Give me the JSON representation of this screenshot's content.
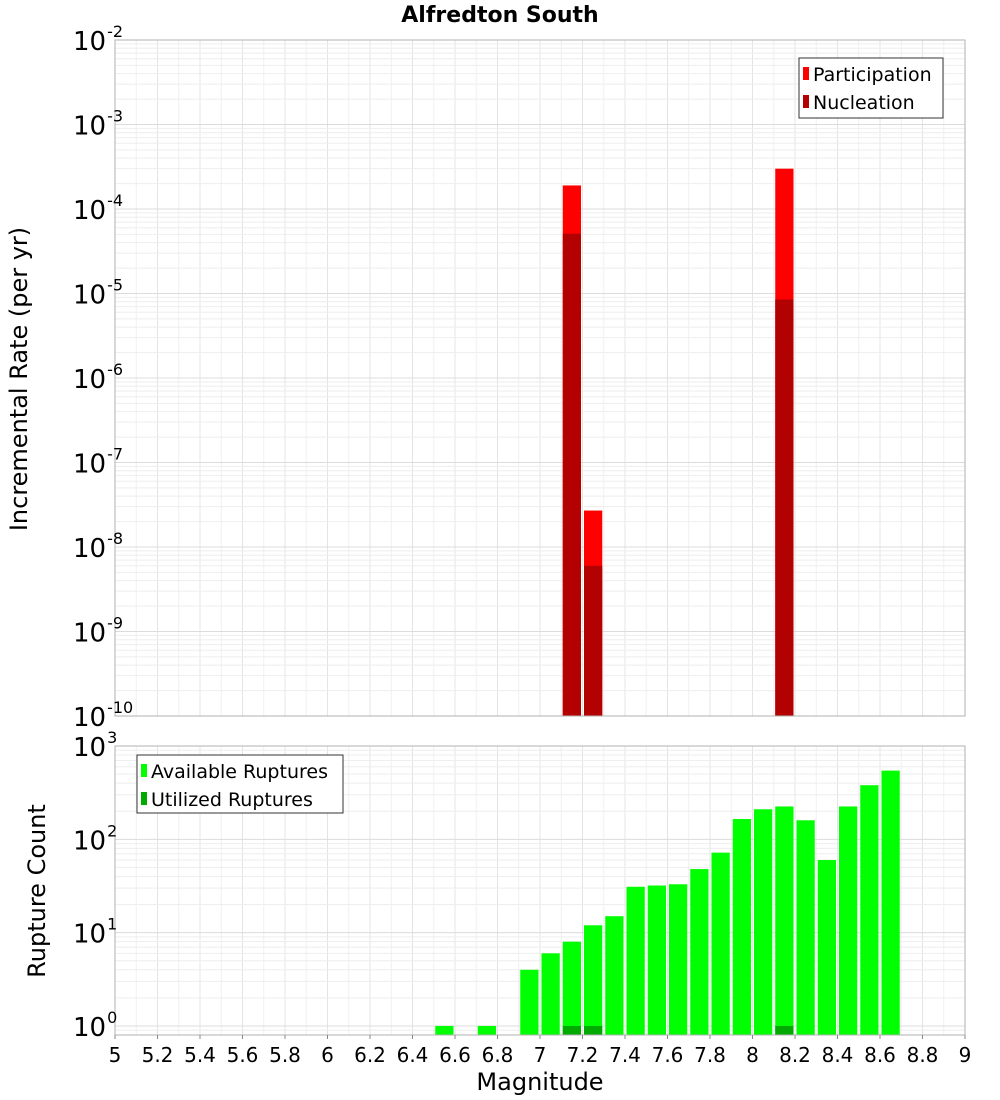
{
  "chart_data": [
    {
      "type": "bar",
      "title": "Alfredton South",
      "xlabel": "",
      "ylabel": "Incremental Rate (per yr)",
      "yscale": "log",
      "ylim": [
        1e-10,
        0.01
      ],
      "xlim": [
        5,
        9
      ],
      "bin_width": 0.1,
      "grid": true,
      "legend_position": "top-right",
      "y_tick_labels": [
        {
          "base": "10",
          "exp": "-10"
        },
        {
          "base": "10",
          "exp": "-9"
        },
        {
          "base": "10",
          "exp": "-8"
        },
        {
          "base": "10",
          "exp": "-7"
        },
        {
          "base": "10",
          "exp": "-6"
        },
        {
          "base": "10",
          "exp": "-5"
        },
        {
          "base": "10",
          "exp": "-4"
        },
        {
          "base": "10",
          "exp": "-3"
        },
        {
          "base": "10",
          "exp": "-2"
        }
      ],
      "series": [
        {
          "name": "Participation",
          "color": "#ff0000",
          "points": [
            {
              "x": 7.15,
              "y": 0.00019
            },
            {
              "x": 7.25,
              "y": 2.7e-08
            },
            {
              "x": 8.15,
              "y": 0.0003
            }
          ]
        },
        {
          "name": "Nucleation",
          "color": "#b30000",
          "points": [
            {
              "x": 7.15,
              "y": 5.1e-05
            },
            {
              "x": 7.25,
              "y": 6e-09
            },
            {
              "x": 8.15,
              "y": 8.5e-06
            }
          ]
        }
      ]
    },
    {
      "type": "bar",
      "title": "",
      "xlabel": "Magnitude",
      "ylabel": "Rupture Count",
      "yscale": "log",
      "ylim": [
        0.8,
        1000
      ],
      "xlim": [
        5,
        9
      ],
      "bin_width": 0.1,
      "grid": true,
      "legend_position": "top-left",
      "x_tick_labels": [
        "5",
        "5.2",
        "5.4",
        "5.6",
        "5.8",
        "6",
        "6.2",
        "6.4",
        "6.6",
        "6.8",
        "7",
        "7.2",
        "7.4",
        "7.6",
        "7.8",
        "8",
        "8.2",
        "8.4",
        "8.6",
        "8.8",
        "9"
      ],
      "y_tick_labels": [
        {
          "base": "10",
          "exp": "0"
        },
        {
          "base": "10",
          "exp": "1"
        },
        {
          "base": "10",
          "exp": "2"
        },
        {
          "base": "10",
          "exp": "3"
        }
      ],
      "series": [
        {
          "name": "Available Ruptures",
          "color": "#00ff00",
          "points": [
            {
              "x": 6.55,
              "y": 1
            },
            {
              "x": 6.75,
              "y": 1
            },
            {
              "x": 6.95,
              "y": 4
            },
            {
              "x": 7.05,
              "y": 6
            },
            {
              "x": 7.15,
              "y": 8
            },
            {
              "x": 7.25,
              "y": 12
            },
            {
              "x": 7.35,
              "y": 15
            },
            {
              "x": 7.45,
              "y": 31
            },
            {
              "x": 7.55,
              "y": 32
            },
            {
              "x": 7.65,
              "y": 33
            },
            {
              "x": 7.75,
              "y": 48
            },
            {
              "x": 7.85,
              "y": 72
            },
            {
              "x": 7.95,
              "y": 165
            },
            {
              "x": 8.05,
              "y": 210
            },
            {
              "x": 8.15,
              "y": 225
            },
            {
              "x": 8.25,
              "y": 160
            },
            {
              "x": 8.35,
              "y": 60
            },
            {
              "x": 8.45,
              "y": 225
            },
            {
              "x": 8.55,
              "y": 380
            },
            {
              "x": 8.65,
              "y": 545
            }
          ]
        },
        {
          "name": "Utilized Ruptures",
          "color": "#00aa00",
          "points": [
            {
              "x": 7.15,
              "y": 1
            },
            {
              "x": 7.25,
              "y": 1
            },
            {
              "x": 8.15,
              "y": 1
            }
          ]
        }
      ]
    }
  ]
}
